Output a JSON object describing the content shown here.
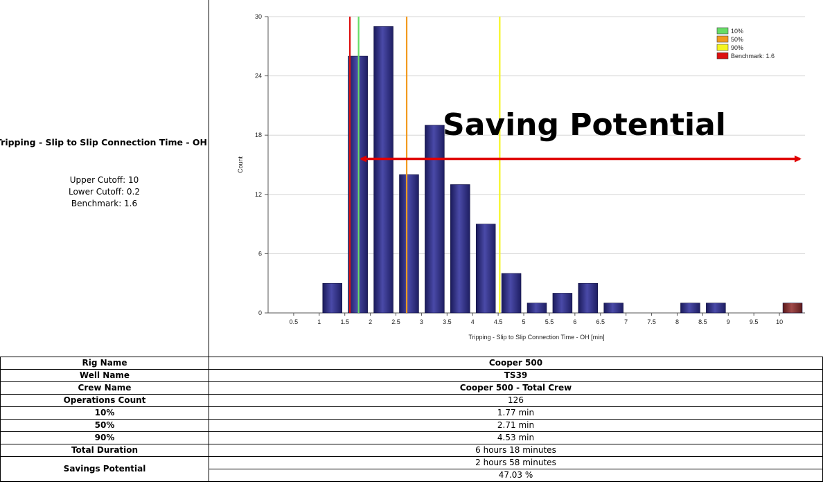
{
  "left_panel": {
    "title": "Tripping - Slip to Slip Connection Time - OH",
    "upper_cutoff": "Upper Cutoff: 10",
    "lower_cutoff": "Lower Cutoff: 0.2",
    "benchmark": "Benchmark: 1.6"
  },
  "chart_data": {
    "type": "bar",
    "xlabel": "Tripping - Slip to Slip Connection Time - OH [min]",
    "ylabel": "Count",
    "xlim": [
      0,
      10.5
    ],
    "ylim": [
      0,
      30
    ],
    "x_ticks": [
      "0.5",
      "1",
      "1.5",
      "2",
      "2.5",
      "3",
      "3.5",
      "4",
      "4.5",
      "5",
      "5.5",
      "6",
      "6.5",
      "7",
      "7.5",
      "8",
      "8.5",
      "9",
      "9.5",
      "10"
    ],
    "y_ticks": [
      0,
      6,
      12,
      18,
      24,
      30
    ],
    "bins": [
      {
        "x": 1.25,
        "count": 3
      },
      {
        "x": 1.75,
        "count": 26
      },
      {
        "x": 2.25,
        "count": 29
      },
      {
        "x": 2.75,
        "count": 14
      },
      {
        "x": 3.25,
        "count": 19
      },
      {
        "x": 3.75,
        "count": 13
      },
      {
        "x": 4.25,
        "count": 9
      },
      {
        "x": 4.75,
        "count": 4
      },
      {
        "x": 5.25,
        "count": 1
      },
      {
        "x": 5.75,
        "count": 2
      },
      {
        "x": 6.25,
        "count": 3
      },
      {
        "x": 6.75,
        "count": 1
      },
      {
        "x": 8.25,
        "count": 1
      },
      {
        "x": 8.75,
        "count": 1
      },
      {
        "x": 10.25,
        "count": 1,
        "color": "#7a2a2a"
      }
    ],
    "bar_color": "#2e2e7e",
    "reference_lines": [
      {
        "name": "10%",
        "x": 1.77,
        "color": "#66dd66"
      },
      {
        "name": "50%",
        "x": 2.71,
        "color": "#f29a1f"
      },
      {
        "name": "90%",
        "x": 4.53,
        "color": "#f5f520"
      },
      {
        "name": "Benchmark: 1.6",
        "x": 1.6,
        "color": "#dd1111"
      }
    ],
    "legend_position": "top-right",
    "grid": "horizontal",
    "annotation": {
      "text": "Saving Potential",
      "arrow_from": 1.75,
      "arrow_to": 10.5,
      "arrow_y": 15.6,
      "color": "#e00000"
    }
  },
  "table": {
    "rows": [
      {
        "label": "Rig Name",
        "value": "Cooper 500",
        "bold": true
      },
      {
        "label": "Well Name",
        "value": "TS39",
        "bold": true
      },
      {
        "label": "Crew Name",
        "value": "Cooper 500 - Total Crew",
        "bold": true
      },
      {
        "label": "Operations Count",
        "value": "126",
        "bold": false
      },
      {
        "label": "10%",
        "value": "1.77 min",
        "bold": false
      },
      {
        "label": "50%",
        "value": "2.71 min",
        "bold": false
      },
      {
        "label": "90%",
        "value": "4.53 min",
        "bold": false
      },
      {
        "label": "Total Duration",
        "value": "6 hours 18 minutes",
        "bold": false
      }
    ],
    "savings_label": "Savings Potential",
    "savings_values": [
      "2 hours 58 minutes",
      "47.03 %"
    ]
  }
}
